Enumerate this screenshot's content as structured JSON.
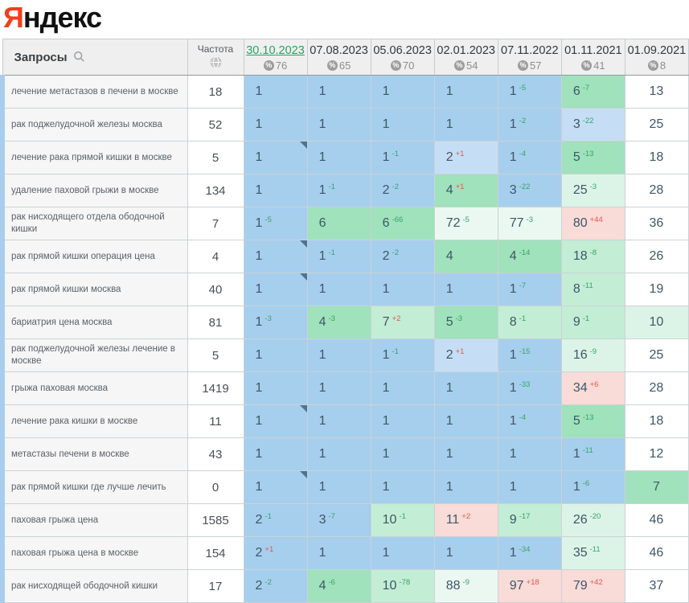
{
  "logo": {
    "first_letter": "Я",
    "rest": "ндекс"
  },
  "icons": {
    "search": "magnifier",
    "frequency": "globe",
    "score_badge": "percent-circle",
    "percent_symbol": "%",
    "note_marker": "corner-triangle"
  },
  "colors": {
    "b1": "#a6cfee",
    "b2": "#c5def5",
    "g1": "#9fe2bb",
    "g2": "#c3edd5",
    "g3": "#dcf4e7",
    "g4": "#ebf8f1",
    "r": "#f9dbd8",
    "w": "#ffffff",
    "accent_active_date": "#28a263",
    "change_up_green": "#35a565",
    "change_down_red": "#e4574b",
    "row_stripe_blue": "#a9cdec"
  },
  "table": {
    "queries_header": "Запросы",
    "frequency_header": "Частота",
    "columns": [
      {
        "date": "30.10.2023",
        "score": "76",
        "active": true
      },
      {
        "date": "07.08.2023",
        "score": "65",
        "active": false
      },
      {
        "date": "05.06.2023",
        "score": "70",
        "active": false
      },
      {
        "date": "02.01.2023",
        "score": "54",
        "active": false
      },
      {
        "date": "07.11.2022",
        "score": "57",
        "active": false
      },
      {
        "date": "01.11.2021",
        "score": "41",
        "active": false
      },
      {
        "date": "01.09.2021",
        "score": "8",
        "active": false
      }
    ],
    "rows": [
      {
        "query": "лечение метастазов в печени в москве",
        "frequency": "18",
        "cells": [
          {
            "v": "1",
            "c": "b1"
          },
          {
            "v": "1",
            "c": "b1"
          },
          {
            "v": "1",
            "c": "b1"
          },
          {
            "v": "1",
            "c": "b1"
          },
          {
            "v": "1",
            "chg": "-5",
            "c": "b1"
          },
          {
            "v": "6",
            "chg": "-7",
            "c": "g1"
          },
          {
            "v": "13",
            "c": "w"
          }
        ]
      },
      {
        "query": "рак поджелудочной железы москва",
        "frequency": "52",
        "cells": [
          {
            "v": "1",
            "c": "b1"
          },
          {
            "v": "1",
            "c": "b1"
          },
          {
            "v": "1",
            "c": "b1"
          },
          {
            "v": "1",
            "c": "b1"
          },
          {
            "v": "1",
            "chg": "-2",
            "c": "b1"
          },
          {
            "v": "3",
            "chg": "-22",
            "c": "b2"
          },
          {
            "v": "25",
            "c": "w"
          }
        ]
      },
      {
        "query": "лечение рака прямой кишки в москве",
        "frequency": "5",
        "cells": [
          {
            "v": "1",
            "c": "b1",
            "note": true
          },
          {
            "v": "1",
            "c": "b1"
          },
          {
            "v": "1",
            "chg": "-1",
            "c": "b1"
          },
          {
            "v": "2",
            "chg": "+1",
            "c": "b2"
          },
          {
            "v": "1",
            "chg": "-4",
            "c": "b1"
          },
          {
            "v": "5",
            "chg": "-13",
            "c": "g1"
          },
          {
            "v": "18",
            "c": "w"
          }
        ]
      },
      {
        "query": "удаление паховой грыжи в москве",
        "frequency": "134",
        "cells": [
          {
            "v": "1",
            "c": "b1"
          },
          {
            "v": "1",
            "chg": "-1",
            "c": "b1"
          },
          {
            "v": "2",
            "chg": "-2",
            "c": "b1"
          },
          {
            "v": "4",
            "chg": "+1",
            "c": "g1"
          },
          {
            "v": "3",
            "chg": "-22",
            "c": "b1"
          },
          {
            "v": "25",
            "chg": "-3",
            "c": "g3"
          },
          {
            "v": "28",
            "c": "w"
          }
        ]
      },
      {
        "query": "рак нисходящего отдела ободочной кишки",
        "frequency": "7",
        "cells": [
          {
            "v": "1",
            "chg": "-5",
            "c": "b1"
          },
          {
            "v": "6",
            "c": "g1"
          },
          {
            "v": "6",
            "chg": "-66",
            "c": "g1"
          },
          {
            "v": "72",
            "chg": "-5",
            "c": "g4"
          },
          {
            "v": "77",
            "chg": "-3",
            "c": "g4"
          },
          {
            "v": "80",
            "chg": "+44",
            "c": "r"
          },
          {
            "v": "36",
            "c": "w"
          }
        ]
      },
      {
        "query": "рак прямой кишки операция цена",
        "frequency": "4",
        "cells": [
          {
            "v": "1",
            "c": "b1",
            "note": true
          },
          {
            "v": "1",
            "chg": "-1",
            "c": "b1"
          },
          {
            "v": "2",
            "chg": "-2",
            "c": "b1"
          },
          {
            "v": "4",
            "c": "g1"
          },
          {
            "v": "4",
            "chg": "-14",
            "c": "g1"
          },
          {
            "v": "18",
            "chg": "-8",
            "c": "g2"
          },
          {
            "v": "26",
            "c": "w"
          }
        ]
      },
      {
        "query": "рак прямой кишки москва",
        "frequency": "40",
        "cells": [
          {
            "v": "1",
            "c": "b1",
            "note": true
          },
          {
            "v": "1",
            "c": "b1"
          },
          {
            "v": "1",
            "c": "b1"
          },
          {
            "v": "1",
            "c": "b1"
          },
          {
            "v": "1",
            "chg": "-7",
            "c": "b1"
          },
          {
            "v": "8",
            "chg": "-11",
            "c": "g2"
          },
          {
            "v": "19",
            "c": "w"
          }
        ]
      },
      {
        "query": "бариатрия цена москва",
        "frequency": "81",
        "cells": [
          {
            "v": "1",
            "chg": "-3",
            "c": "b1"
          },
          {
            "v": "4",
            "chg": "-3",
            "c": "g1"
          },
          {
            "v": "7",
            "chg": "+2",
            "c": "g2"
          },
          {
            "v": "5",
            "chg": "-3",
            "c": "g1"
          },
          {
            "v": "8",
            "chg": "-1",
            "c": "g2"
          },
          {
            "v": "9",
            "chg": "-1",
            "c": "g2"
          },
          {
            "v": "10",
            "c": "g3"
          }
        ]
      },
      {
        "query": "рак поджелудочной железы лечение в москве",
        "frequency": "5",
        "cells": [
          {
            "v": "1",
            "c": "b1"
          },
          {
            "v": "1",
            "c": "b1"
          },
          {
            "v": "1",
            "chg": "-1",
            "c": "b1"
          },
          {
            "v": "2",
            "chg": "+1",
            "c": "b2"
          },
          {
            "v": "1",
            "chg": "-15",
            "c": "b1"
          },
          {
            "v": "16",
            "chg": "-9",
            "c": "g3"
          },
          {
            "v": "25",
            "c": "w"
          }
        ]
      },
      {
        "query": "грыжа паховая москва",
        "frequency": "1419",
        "cells": [
          {
            "v": "1",
            "c": "b1"
          },
          {
            "v": "1",
            "c": "b1"
          },
          {
            "v": "1",
            "c": "b1"
          },
          {
            "v": "1",
            "c": "b1"
          },
          {
            "v": "1",
            "chg": "-33",
            "c": "b1"
          },
          {
            "v": "34",
            "chg": "+6",
            "c": "r"
          },
          {
            "v": "28",
            "c": "w"
          }
        ]
      },
      {
        "query": "лечение рака кишки в москве",
        "frequency": "11",
        "cells": [
          {
            "v": "1",
            "c": "b1",
            "note": true
          },
          {
            "v": "1",
            "c": "b1"
          },
          {
            "v": "1",
            "c": "b1"
          },
          {
            "v": "1",
            "c": "b1"
          },
          {
            "v": "1",
            "chg": "-4",
            "c": "b1"
          },
          {
            "v": "5",
            "chg": "-13",
            "c": "g1"
          },
          {
            "v": "18",
            "c": "w"
          }
        ]
      },
      {
        "query": "метастазы печени в москве",
        "frequency": "43",
        "cells": [
          {
            "v": "1",
            "c": "b1"
          },
          {
            "v": "1",
            "c": "b1"
          },
          {
            "v": "1",
            "c": "b1"
          },
          {
            "v": "1",
            "c": "b1"
          },
          {
            "v": "1",
            "c": "b1"
          },
          {
            "v": "1",
            "chg": "-11",
            "c": "b1"
          },
          {
            "v": "12",
            "c": "w"
          }
        ]
      },
      {
        "query": "рак прямой кишки где лучше лечить",
        "frequency": "0",
        "cells": [
          {
            "v": "1",
            "c": "b1",
            "note": true
          },
          {
            "v": "1",
            "c": "b1"
          },
          {
            "v": "1",
            "c": "b1"
          },
          {
            "v": "1",
            "c": "b1"
          },
          {
            "v": "1",
            "c": "b1"
          },
          {
            "v": "1",
            "chg": "-6",
            "c": "b1"
          },
          {
            "v": "7",
            "c": "g1"
          }
        ]
      },
      {
        "query": "паховая грыжа цена",
        "frequency": "1585",
        "cells": [
          {
            "v": "2",
            "chg": "-1",
            "c": "b1"
          },
          {
            "v": "3",
            "chg": "-7",
            "c": "b1"
          },
          {
            "v": "10",
            "chg": "-1",
            "c": "g2"
          },
          {
            "v": "11",
            "chg": "+2",
            "c": "r"
          },
          {
            "v": "9",
            "chg": "-17",
            "c": "g2"
          },
          {
            "v": "26",
            "chg": "-20",
            "c": "g3"
          },
          {
            "v": "46",
            "c": "w"
          }
        ]
      },
      {
        "query": "паховая грыжа цена в москве",
        "frequency": "154",
        "cells": [
          {
            "v": "2",
            "chg": "+1",
            "c": "b1"
          },
          {
            "v": "1",
            "c": "b1"
          },
          {
            "v": "1",
            "c": "b1"
          },
          {
            "v": "1",
            "c": "b1"
          },
          {
            "v": "1",
            "chg": "-34",
            "c": "b1"
          },
          {
            "v": "35",
            "chg": "-11",
            "c": "g3"
          },
          {
            "v": "46",
            "c": "w"
          }
        ]
      },
      {
        "query": "рак нисходящей ободочной кишки",
        "frequency": "17",
        "cells": [
          {
            "v": "2",
            "chg": "-2",
            "c": "b1"
          },
          {
            "v": "4",
            "chg": "-6",
            "c": "g1"
          },
          {
            "v": "10",
            "chg": "-78",
            "c": "g2"
          },
          {
            "v": "88",
            "chg": "-9",
            "c": "g4"
          },
          {
            "v": "97",
            "chg": "+18",
            "c": "r"
          },
          {
            "v": "79",
            "chg": "+42",
            "c": "r"
          },
          {
            "v": "37",
            "c": "w"
          }
        ]
      }
    ]
  }
}
